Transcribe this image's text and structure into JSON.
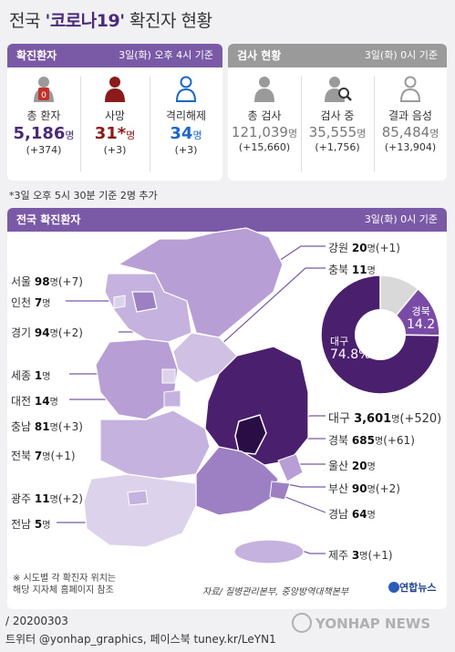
{
  "title": {
    "prefix": "전국 ",
    "quoted": "'코로나19'",
    "suffix": " 확진자 현황"
  },
  "confirmed_panel": {
    "label": "확진환자",
    "note": "3일(화) 오후 4시 기준",
    "stats": [
      {
        "name": "총 환자",
        "value": "5,186",
        "unit": "명",
        "delta": "(+374)",
        "color": "#4b2a7b",
        "badge": "0"
      },
      {
        "name": "사망",
        "value": "31*",
        "unit": "명",
        "delta": "(+3)",
        "color": "#8b1a1a"
      },
      {
        "name": "격리해제",
        "value": "34",
        "unit": "명",
        "delta": "(+3)",
        "color": "#1c66c7"
      }
    ]
  },
  "test_panel": {
    "label": "검사 현황",
    "note": "3일(화) 0시 기준",
    "stats": [
      {
        "name": "총 검사",
        "value": "121,039",
        "unit": "명",
        "delta": "(+15,660)"
      },
      {
        "name": "검사 중",
        "value": "35,555",
        "unit": "명",
        "delta": "(+1,756)"
      },
      {
        "name": "결과 음성",
        "value": "85,484",
        "unit": "명",
        "delta": "(+13,904)"
      }
    ]
  },
  "footnote": "*3일 오후 5시 30분 기준 2명 추가",
  "map_panel": {
    "label": "전국 확진환자",
    "note": "3일(화) 0시 기준"
  },
  "chart_data": {
    "type": "pie",
    "slices": [
      {
        "label": "대구",
        "value": 74.8,
        "display": "74.8%",
        "color": "#4a1f6e"
      },
      {
        "label": "경북",
        "value": 14.2,
        "display": "14.2",
        "color": "#7a4ba6"
      },
      {
        "label": "",
        "value": 11.0,
        "display": "",
        "color": "#d9d9d9"
      }
    ]
  },
  "regions": [
    {
      "name": "서울",
      "count": "98",
      "unit": "명",
      "delta": "(+7)"
    },
    {
      "name": "인천",
      "count": "7",
      "unit": "명",
      "delta": ""
    },
    {
      "name": "경기",
      "count": "94",
      "unit": "명",
      "delta": "(+2)"
    },
    {
      "name": "세종",
      "count": "1",
      "unit": "명",
      "delta": ""
    },
    {
      "name": "대전",
      "count": "14",
      "unit": "명",
      "delta": ""
    },
    {
      "name": "충남",
      "count": "81",
      "unit": "명",
      "delta": "(+3)"
    },
    {
      "name": "전북",
      "count": "7",
      "unit": "명",
      "delta": "(+1)"
    },
    {
      "name": "광주",
      "count": "11",
      "unit": "명",
      "delta": "(+2)"
    },
    {
      "name": "전남",
      "count": "5",
      "unit": "명",
      "delta": ""
    },
    {
      "name": "강원",
      "count": "20",
      "unit": "명",
      "delta": "(+1)"
    },
    {
      "name": "충북",
      "count": "11",
      "unit": "명",
      "delta": ""
    },
    {
      "name": "대구",
      "count": "3,601",
      "unit": "명",
      "delta": "(+520)"
    },
    {
      "name": "경북",
      "count": "685",
      "unit": "명",
      "delta": "(+61)"
    },
    {
      "name": "울산",
      "count": "20",
      "unit": "명",
      "delta": ""
    },
    {
      "name": "부산",
      "count": "90",
      "unit": "명",
      "delta": "(+2)"
    },
    {
      "name": "경남",
      "count": "64",
      "unit": "명",
      "delta": ""
    },
    {
      "name": "제주",
      "count": "3",
      "unit": "명",
      "delta": "(+1)"
    }
  ],
  "map_note": "※ 시도별 각 확진자 위치는\n해당 지자체 홈페이지 참조",
  "source": "자료/ 질병관리본부, 중앙방역대책본부",
  "brand": "연합뉴스",
  "date": "/ 20200303",
  "social": "트위터 @yonhap_graphics, 페이스북 tuney.kr/LeYN1",
  "watermark": "YONHAP NEWS"
}
